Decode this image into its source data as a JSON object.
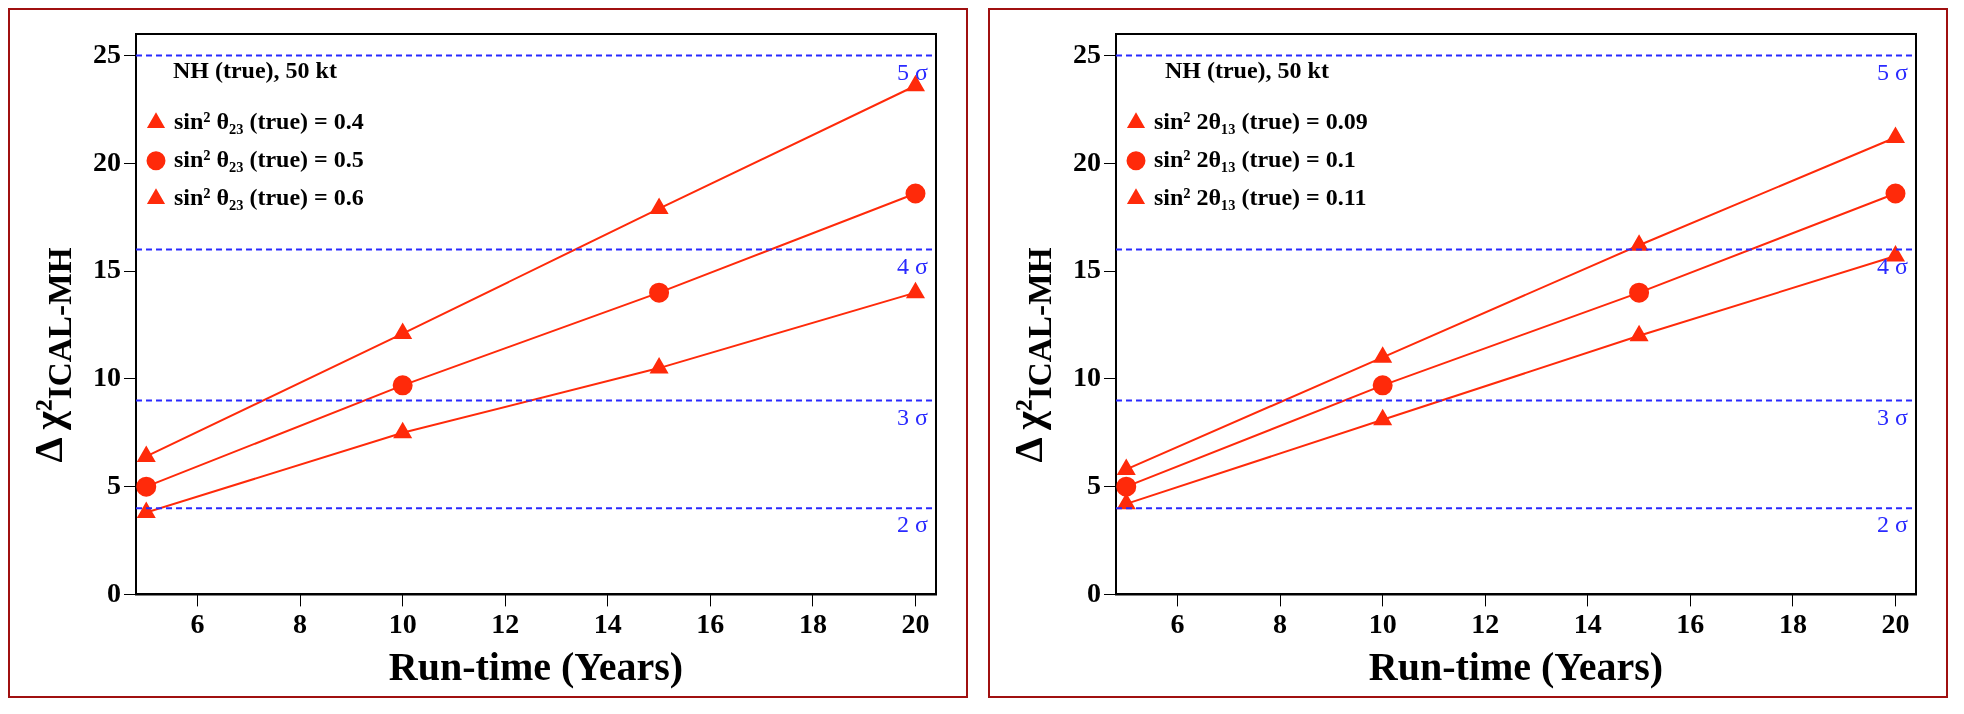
{
  "chart_data": [
    {
      "type": "line",
      "legend_title": "NH (true), 50 kt",
      "xlabel": "Run-time (Years)",
      "ylabel": "Δ χ²$_{ICAL-MH}$",
      "x": [
        5,
        10,
        15,
        20
      ],
      "xlim": [
        4.8,
        20.4
      ],
      "xticks": [
        6,
        8,
        10,
        12,
        14,
        16,
        18,
        20
      ],
      "ylim": [
        0,
        26
      ],
      "yticks": [
        0,
        5,
        10,
        15,
        20,
        25
      ],
      "grid": false,
      "legend": "top left",
      "line_style": "solid",
      "series": [
        {
          "name": "sin² θ₂₃ (true) = 0.4",
          "color": "#ff2a0a",
          "marker": "triangle",
          "values": [
            3.8,
            7.5,
            10.5,
            14
          ]
        },
        {
          "name": "sin² θ₂₃ (true) = 0.5",
          "color": "#ff2a0a",
          "marker": "circle",
          "values": [
            5,
            9.7,
            14,
            18.6
          ]
        },
        {
          "name": "sin² θ₂₃ (true) = 0.6",
          "color": "#ff2a0a",
          "marker": "triangle",
          "values": [
            6.4,
            12.1,
            17.9,
            23.6
          ]
        }
      ],
      "ref_lines": [
        {
          "axis": "y",
          "value": 4,
          "label": "2 σ",
          "color": "#2a2aff",
          "line_style": "dashed"
        },
        {
          "axis": "y",
          "value": 9,
          "label": "3 σ",
          "color": "#2a2aff",
          "line_style": "dashed"
        },
        {
          "axis": "y",
          "value": 16,
          "label": "4 σ",
          "color": "#2a2aff",
          "line_style": "dashed"
        },
        {
          "axis": "y",
          "value": 25,
          "label": "5 σ",
          "color": "#2a2aff",
          "line_style": "dashed"
        }
      ]
    },
    {
      "type": "line",
      "legend_title": "NH (true), 50 kt",
      "xlabel": "Run-time (Years)",
      "ylabel": "Δ χ²$_{ICAL-MH}$",
      "x": [
        5,
        10,
        15,
        20
      ],
      "xlim": [
        4.8,
        20.4
      ],
      "xticks": [
        6,
        8,
        10,
        12,
        14,
        16,
        18,
        20
      ],
      "ylim": [
        0,
        26
      ],
      "yticks": [
        0,
        5,
        10,
        15,
        20,
        25
      ],
      "grid": false,
      "legend": "top left",
      "line_style": "solid",
      "series": [
        {
          "name": "sin² 2θ₁₃ (true) = 0.09",
          "color": "#ff2a0a",
          "marker": "triangle",
          "values": [
            4.2,
            8.1,
            12,
            15.7
          ]
        },
        {
          "name": "sin² 2θ₁₃ (true) = 0.1",
          "color": "#ff2a0a",
          "marker": "circle",
          "values": [
            5,
            9.7,
            14,
            18.6
          ]
        },
        {
          "name": "sin² 2θ₁₃ (true) = 0.11",
          "color": "#ff2a0a",
          "marker": "triangle",
          "values": [
            5.8,
            11,
            16.2,
            21.2
          ]
        }
      ],
      "ref_lines": [
        {
          "axis": "y",
          "value": 4,
          "label": "2 σ",
          "color": "#2a2aff",
          "line_style": "dashed"
        },
        {
          "axis": "y",
          "value": 9,
          "label": "3 σ",
          "color": "#2a2aff",
          "line_style": "dashed"
        },
        {
          "axis": "y",
          "value": 16,
          "label": "4 σ",
          "color": "#2a2aff",
          "line_style": "dashed"
        },
        {
          "axis": "y",
          "value": 25,
          "label": "5 σ",
          "color": "#2a2aff",
          "line_style": "dashed"
        }
      ]
    }
  ]
}
